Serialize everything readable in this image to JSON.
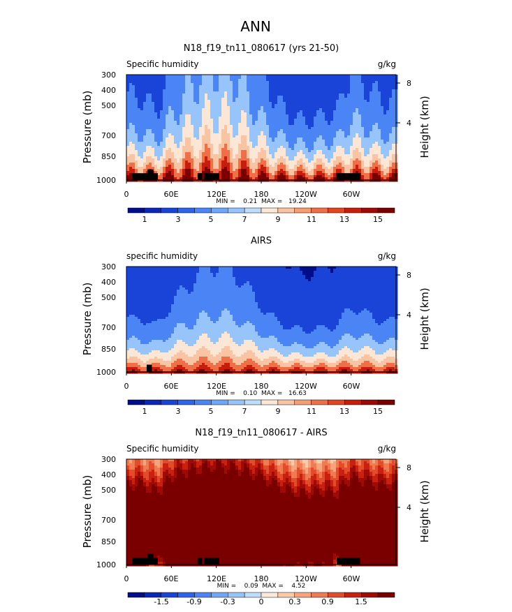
{
  "page": {
    "title": "ANN"
  },
  "colors": {
    "blue_red_scale": [
      "#000e8c",
      "#0b27b8",
      "#1a43d8",
      "#2e63ec",
      "#4a84f5",
      "#6fa6f8",
      "#97c4fb",
      "#bedcfd",
      "#fce6d6",
      "#f9c4a3",
      "#f59d74",
      "#ef7048",
      "#e34521",
      "#c61d0c",
      "#9e0805",
      "#7a0000"
    ],
    "diff_scale": [
      "#000e8c",
      "#0b27b8",
      "#1a43d8",
      "#2e63ec",
      "#4a84f5",
      "#6fa6f8",
      "#97c4fb",
      "#bedcfd",
      "#fde8dc",
      "#fbcaa9",
      "#f7a47c",
      "#f07a52",
      "#e34c2a",
      "#c8210f",
      "#a00a06",
      "#7a0000"
    ],
    "topography": "#000000"
  },
  "chart_data": [
    {
      "type": "heatmap",
      "title": "N18_f19_tn11_080617 (yrs 21-50)",
      "left_label": "Specific humidity",
      "right_label": "g/kg",
      "ylabel": "Pressure (mb)",
      "ylabel_right": "Height (km)",
      "y_ticks": [
        "300",
        "400",
        "500",
        "700",
        "850",
        "1000"
      ],
      "y_values": [
        300,
        400,
        500,
        700,
        850,
        1000
      ],
      "right_ticks": [
        "8",
        "4"
      ],
      "x_ticks": [
        "0",
        "60E",
        "120E",
        "180",
        "120W",
        "60W"
      ],
      "x_values": [
        0,
        60,
        120,
        180,
        240,
        300
      ],
      "xlim": [
        0,
        360
      ],
      "ylim": [
        1000,
        300
      ],
      "stats": "MIN =    0.21  MAX =   19.24",
      "min": 0.21,
      "max": 19.24,
      "colorbar_ticks": [
        "1",
        "3",
        "5",
        "7",
        "9",
        "11",
        "13",
        "15"
      ],
      "colorbar_levels": [
        1,
        3,
        5,
        7,
        9,
        11,
        13,
        15
      ],
      "scale": "blue_red_scale",
      "mode": "model",
      "terrain_blocks": [
        {
          "lon0": 8,
          "lon1": 28,
          "p_top": 925
        },
        {
          "lon0": 28,
          "lon1": 36,
          "p_top": 885
        },
        {
          "lon0": 36,
          "lon1": 42,
          "p_top": 925
        },
        {
          "lon0": 95,
          "lon1": 101,
          "p_top": 925
        },
        {
          "lon0": 104,
          "lon1": 124,
          "p_top": 925
        },
        {
          "lon0": 281,
          "lon1": 312,
          "p_top": 925
        }
      ]
    },
    {
      "type": "heatmap",
      "title": "AIRS",
      "left_label": "specific humidity",
      "right_label": "g/kg",
      "ylabel": "Pressure (mb)",
      "ylabel_right": "Height (km)",
      "y_ticks": [
        "300",
        "400",
        "500",
        "700",
        "850",
        "1000"
      ],
      "y_values": [
        300,
        400,
        500,
        700,
        850,
        1000
      ],
      "right_ticks": [
        "8",
        "4"
      ],
      "x_ticks": [
        "0",
        "60E",
        "120E",
        "180",
        "120W",
        "60W"
      ],
      "x_values": [
        0,
        60,
        120,
        180,
        240,
        300
      ],
      "xlim": [
        0,
        360
      ],
      "ylim": [
        1000,
        300
      ],
      "stats": "MIN =    0.10  MAX =   16.63",
      "min": 0.1,
      "max": 16.63,
      "colorbar_ticks": [
        "1",
        "3",
        "5",
        "7",
        "9",
        "11",
        "13",
        "15"
      ],
      "colorbar_levels": [
        1,
        3,
        5,
        7,
        9,
        11,
        13,
        15
      ],
      "scale": "blue_red_scale",
      "mode": "obs",
      "terrain_blocks": [
        {
          "lon0": 27,
          "lon1": 34,
          "p_top": 920
        }
      ]
    },
    {
      "type": "heatmap",
      "title": "N18_f19_tn11_080617 - AIRS",
      "left_label": "Specific humidity",
      "right_label": "g/kg",
      "ylabel": "Pressure (mb)",
      "ylabel_right": "Height (km)",
      "y_ticks": [
        "300",
        "400",
        "500",
        "700",
        "850",
        "1000"
      ],
      "y_values": [
        300,
        400,
        500,
        700,
        850,
        1000
      ],
      "right_ticks": [
        "8",
        "4"
      ],
      "x_ticks": [
        "0",
        "60E",
        "120E",
        "180",
        "120W",
        "60W"
      ],
      "x_values": [
        0,
        60,
        120,
        180,
        240,
        300
      ],
      "xlim": [
        0,
        360
      ],
      "ylim": [
        1000,
        300
      ],
      "stats": "MIN =    0.09  MAX =    4.52",
      "min": 0.09,
      "max": 4.52,
      "colorbar_ticks": [
        "-1.5",
        "-0.9",
        "-0.3",
        "0",
        "0.3",
        "0.9",
        "1.5"
      ],
      "colorbar_levels": [
        -1.5,
        -0.9,
        -0.3,
        0,
        0.3,
        0.9,
        1.5
      ],
      "scale": "diff_scale",
      "mode": "diff",
      "terrain_blocks": [
        {
          "lon0": 8,
          "lon1": 28,
          "p_top": 925
        },
        {
          "lon0": 28,
          "lon1": 36,
          "p_top": 885
        },
        {
          "lon0": 36,
          "lon1": 42,
          "p_top": 925
        },
        {
          "lon0": 95,
          "lon1": 101,
          "p_top": 925
        },
        {
          "lon0": 104,
          "lon1": 124,
          "p_top": 925
        },
        {
          "lon0": 281,
          "lon1": 312,
          "p_top": 925
        }
      ]
    }
  ]
}
